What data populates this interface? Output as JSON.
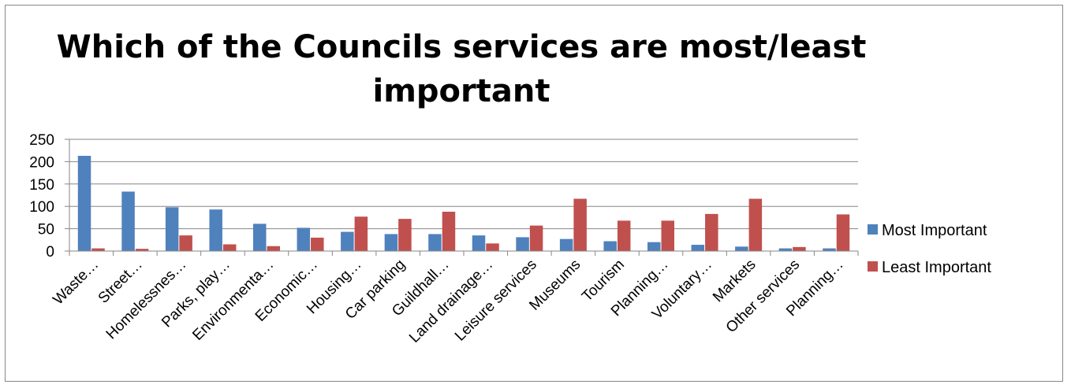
{
  "chart_data": {
    "type": "bar",
    "title": "Which of the Councils services are most/least important",
    "categories": [
      "Waste…",
      "Street…",
      "Homelessnes…",
      "Parks, play…",
      "Environmenta…",
      "Economic…",
      "Housing…",
      "Car parking",
      "Guildhall…",
      "Land drainage…",
      "Leisure services",
      "Museums",
      "Tourism",
      "Planning…",
      "Voluntary…",
      "Markets",
      "Other services",
      "Planning…"
    ],
    "series": [
      {
        "name": "Most Important",
        "color": "#4F81BD",
        "values": [
          213,
          133,
          98,
          93,
          61,
          52,
          43,
          38,
          38,
          35,
          31,
          27,
          22,
          20,
          14,
          10,
          6,
          6
        ]
      },
      {
        "name": "Least Important",
        "color": "#C0504D",
        "values": [
          6,
          5,
          35,
          15,
          11,
          30,
          77,
          72,
          88,
          17,
          57,
          117,
          68,
          68,
          83,
          117,
          9,
          82
        ]
      }
    ],
    "ylim": [
      0,
      250
    ],
    "yticks": [
      0,
      50,
      100,
      150,
      200,
      250
    ],
    "grid": true,
    "legend_position": "right"
  }
}
